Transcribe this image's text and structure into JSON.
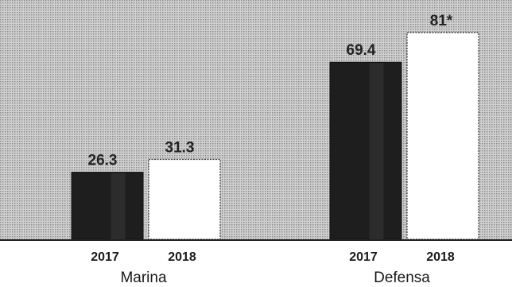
{
  "chart_data": {
    "type": "bar",
    "title": "",
    "xlabel": "",
    "ylabel": "",
    "groups": [
      {
        "name": "Marina",
        "bars": [
          {
            "year": "2017",
            "value": 26.3,
            "label": "26.3",
            "fill": "#1e1e1e"
          },
          {
            "year": "2018",
            "value": 31.3,
            "label": "31.3",
            "fill": "#ffffff"
          }
        ]
      },
      {
        "name": "Defensa",
        "bars": [
          {
            "year": "2017",
            "value": 69.4,
            "label": "69.4",
            "fill": "#1e1e1e"
          },
          {
            "year": "2018",
            "value": 81,
            "label": "81*",
            "fill": "#ffffff"
          }
        ]
      }
    ],
    "ylim": [
      0,
      81
    ],
    "grid": false,
    "legend": "none",
    "colors": {
      "background": "#b4b4b4",
      "bar_dark": "#1e1e1e",
      "bar_light": "#ffffff",
      "baseline": "#222222"
    }
  }
}
